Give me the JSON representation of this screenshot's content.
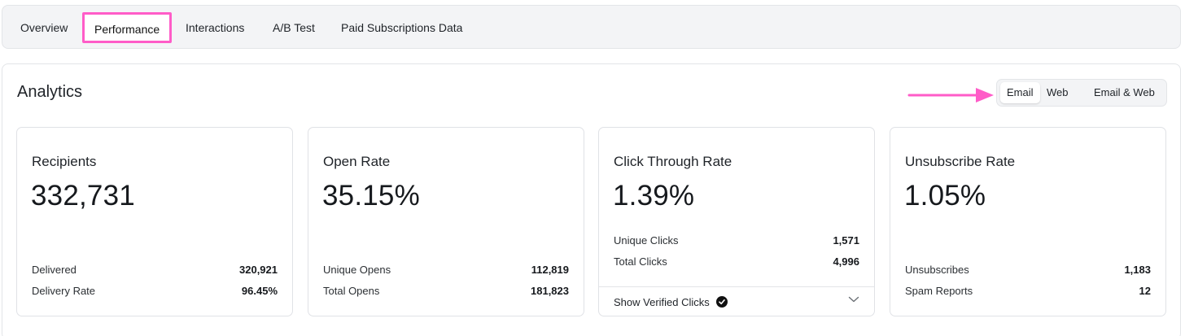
{
  "tabs": [
    {
      "label": "Overview"
    },
    {
      "label": "Performance",
      "active": true
    },
    {
      "label": "Interactions"
    },
    {
      "label": "A/B Test"
    },
    {
      "label": "Paid Subscriptions Data"
    }
  ],
  "panel": {
    "title": "Analytics",
    "toggle": [
      {
        "label": "Email",
        "active": true
      },
      {
        "label": "Web"
      },
      {
        "label": "Email & Web"
      }
    ]
  },
  "cards": [
    {
      "title": "Recipients",
      "value": "332,731",
      "rows": [
        {
          "label": "Delivered",
          "value": "320,921"
        },
        {
          "label": "Delivery Rate",
          "value": "96.45%"
        }
      ]
    },
    {
      "title": "Open Rate",
      "value": "35.15%",
      "rows": [
        {
          "label": "Unique Opens",
          "value": "112,819"
        },
        {
          "label": "Total Opens",
          "value": "181,823"
        }
      ]
    },
    {
      "title": "Click Through Rate",
      "value": "1.39%",
      "rows": [
        {
          "label": "Unique Clicks",
          "value": "1,571"
        },
        {
          "label": "Total Clicks",
          "value": "4,996"
        }
      ],
      "footer": {
        "label": "Show Verified Clicks",
        "icon": "verified-check-icon",
        "expand_icon": "chevron-down-icon"
      }
    },
    {
      "title": "Unsubscribe Rate",
      "value": "1.05%",
      "rows": [
        {
          "label": "Unsubscribes",
          "value": "1,183"
        },
        {
          "label": "Spam Reports",
          "value": "12"
        }
      ]
    }
  ],
  "annotations": {
    "highlight_color": "#ff5cc8",
    "arrow_icon": "pink-arrow-icon"
  }
}
